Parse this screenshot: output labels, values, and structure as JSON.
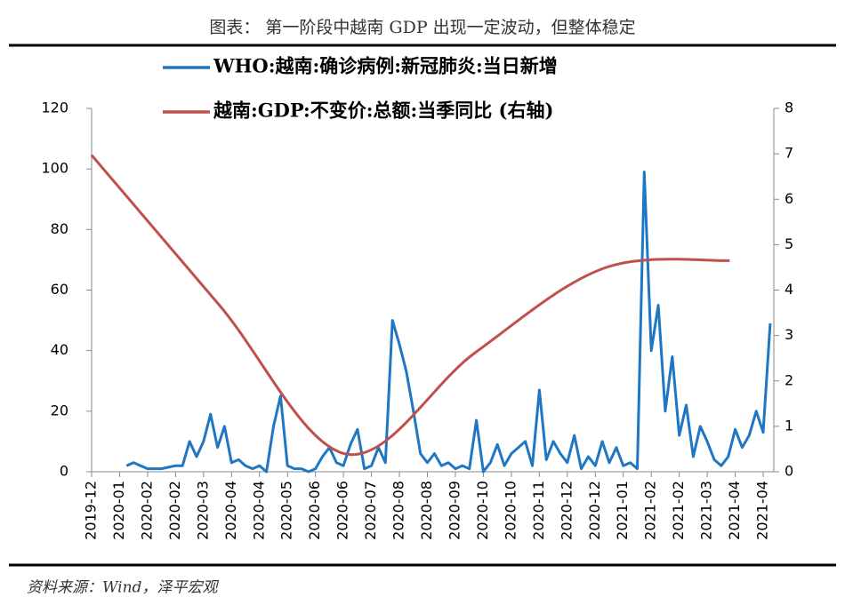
{
  "chart_data": {
    "type": "line",
    "title": "图表： 第一阶段中越南 GDP 出现一定波动，但整体稳定",
    "source": "资料来源：Wind，泽平宏观",
    "xticks": [
      "2019-12",
      "2020-01",
      "2020-02",
      "2020-02",
      "2020-03",
      "2020-04",
      "2020-04",
      "2020-05",
      "2020-06",
      "2020-06",
      "2020-07",
      "2020-08",
      "2020-08",
      "2020-09",
      "2020-10",
      "2020-10",
      "2020-11",
      "2020-12",
      "2020-12",
      "2021-01",
      "2021-02",
      "2021-02",
      "2021-03",
      "2021-04",
      "2021-04"
    ],
    "ylim": [
      0,
      120
    ],
    "yticks": [
      0,
      20,
      40,
      60,
      80,
      100,
      120
    ],
    "y2lim": [
      0,
      8
    ],
    "y2ticks": [
      0,
      1,
      2,
      3,
      4,
      5,
      6,
      7,
      8
    ],
    "grid": false,
    "series": [
      {
        "name": "WHO:越南:确诊病例:新冠肺炎:当日新增",
        "color": "#1f77c4",
        "values": [
          null,
          null,
          null,
          null,
          null,
          2,
          3,
          2,
          1,
          1,
          1,
          1.5,
          2,
          2,
          10,
          5,
          10,
          19,
          8,
          15,
          3,
          4,
          2,
          1,
          2,
          0,
          15,
          25,
          2,
          1,
          1,
          0,
          1,
          5,
          8,
          3,
          2,
          9,
          14,
          1,
          2,
          8,
          3,
          50,
          42,
          33,
          20,
          6,
          3,
          6,
          2,
          3,
          1,
          2,
          1,
          17,
          0,
          3,
          9,
          2,
          6,
          8,
          10,
          2,
          27,
          4,
          10,
          6,
          3,
          12,
          1,
          5,
          2,
          10,
          3,
          8,
          2,
          3,
          1,
          99,
          40,
          55,
          20,
          38,
          12,
          22,
          5,
          15,
          10,
          4,
          2,
          5,
          14,
          8,
          12,
          20,
          13,
          49
        ]
      },
      {
        "name": "越南:GDP:不变价:总额:当季同比 (右轴)",
        "color": "#c0504d",
        "axis": "y2",
        "x": [
          "2019-12",
          "2020-03",
          "2020-06",
          "2020-09",
          "2020-12",
          "2021-03"
        ],
        "values": [
          6.97,
          3.68,
          0.39,
          2.62,
          4.48,
          4.65
        ]
      }
    ]
  }
}
